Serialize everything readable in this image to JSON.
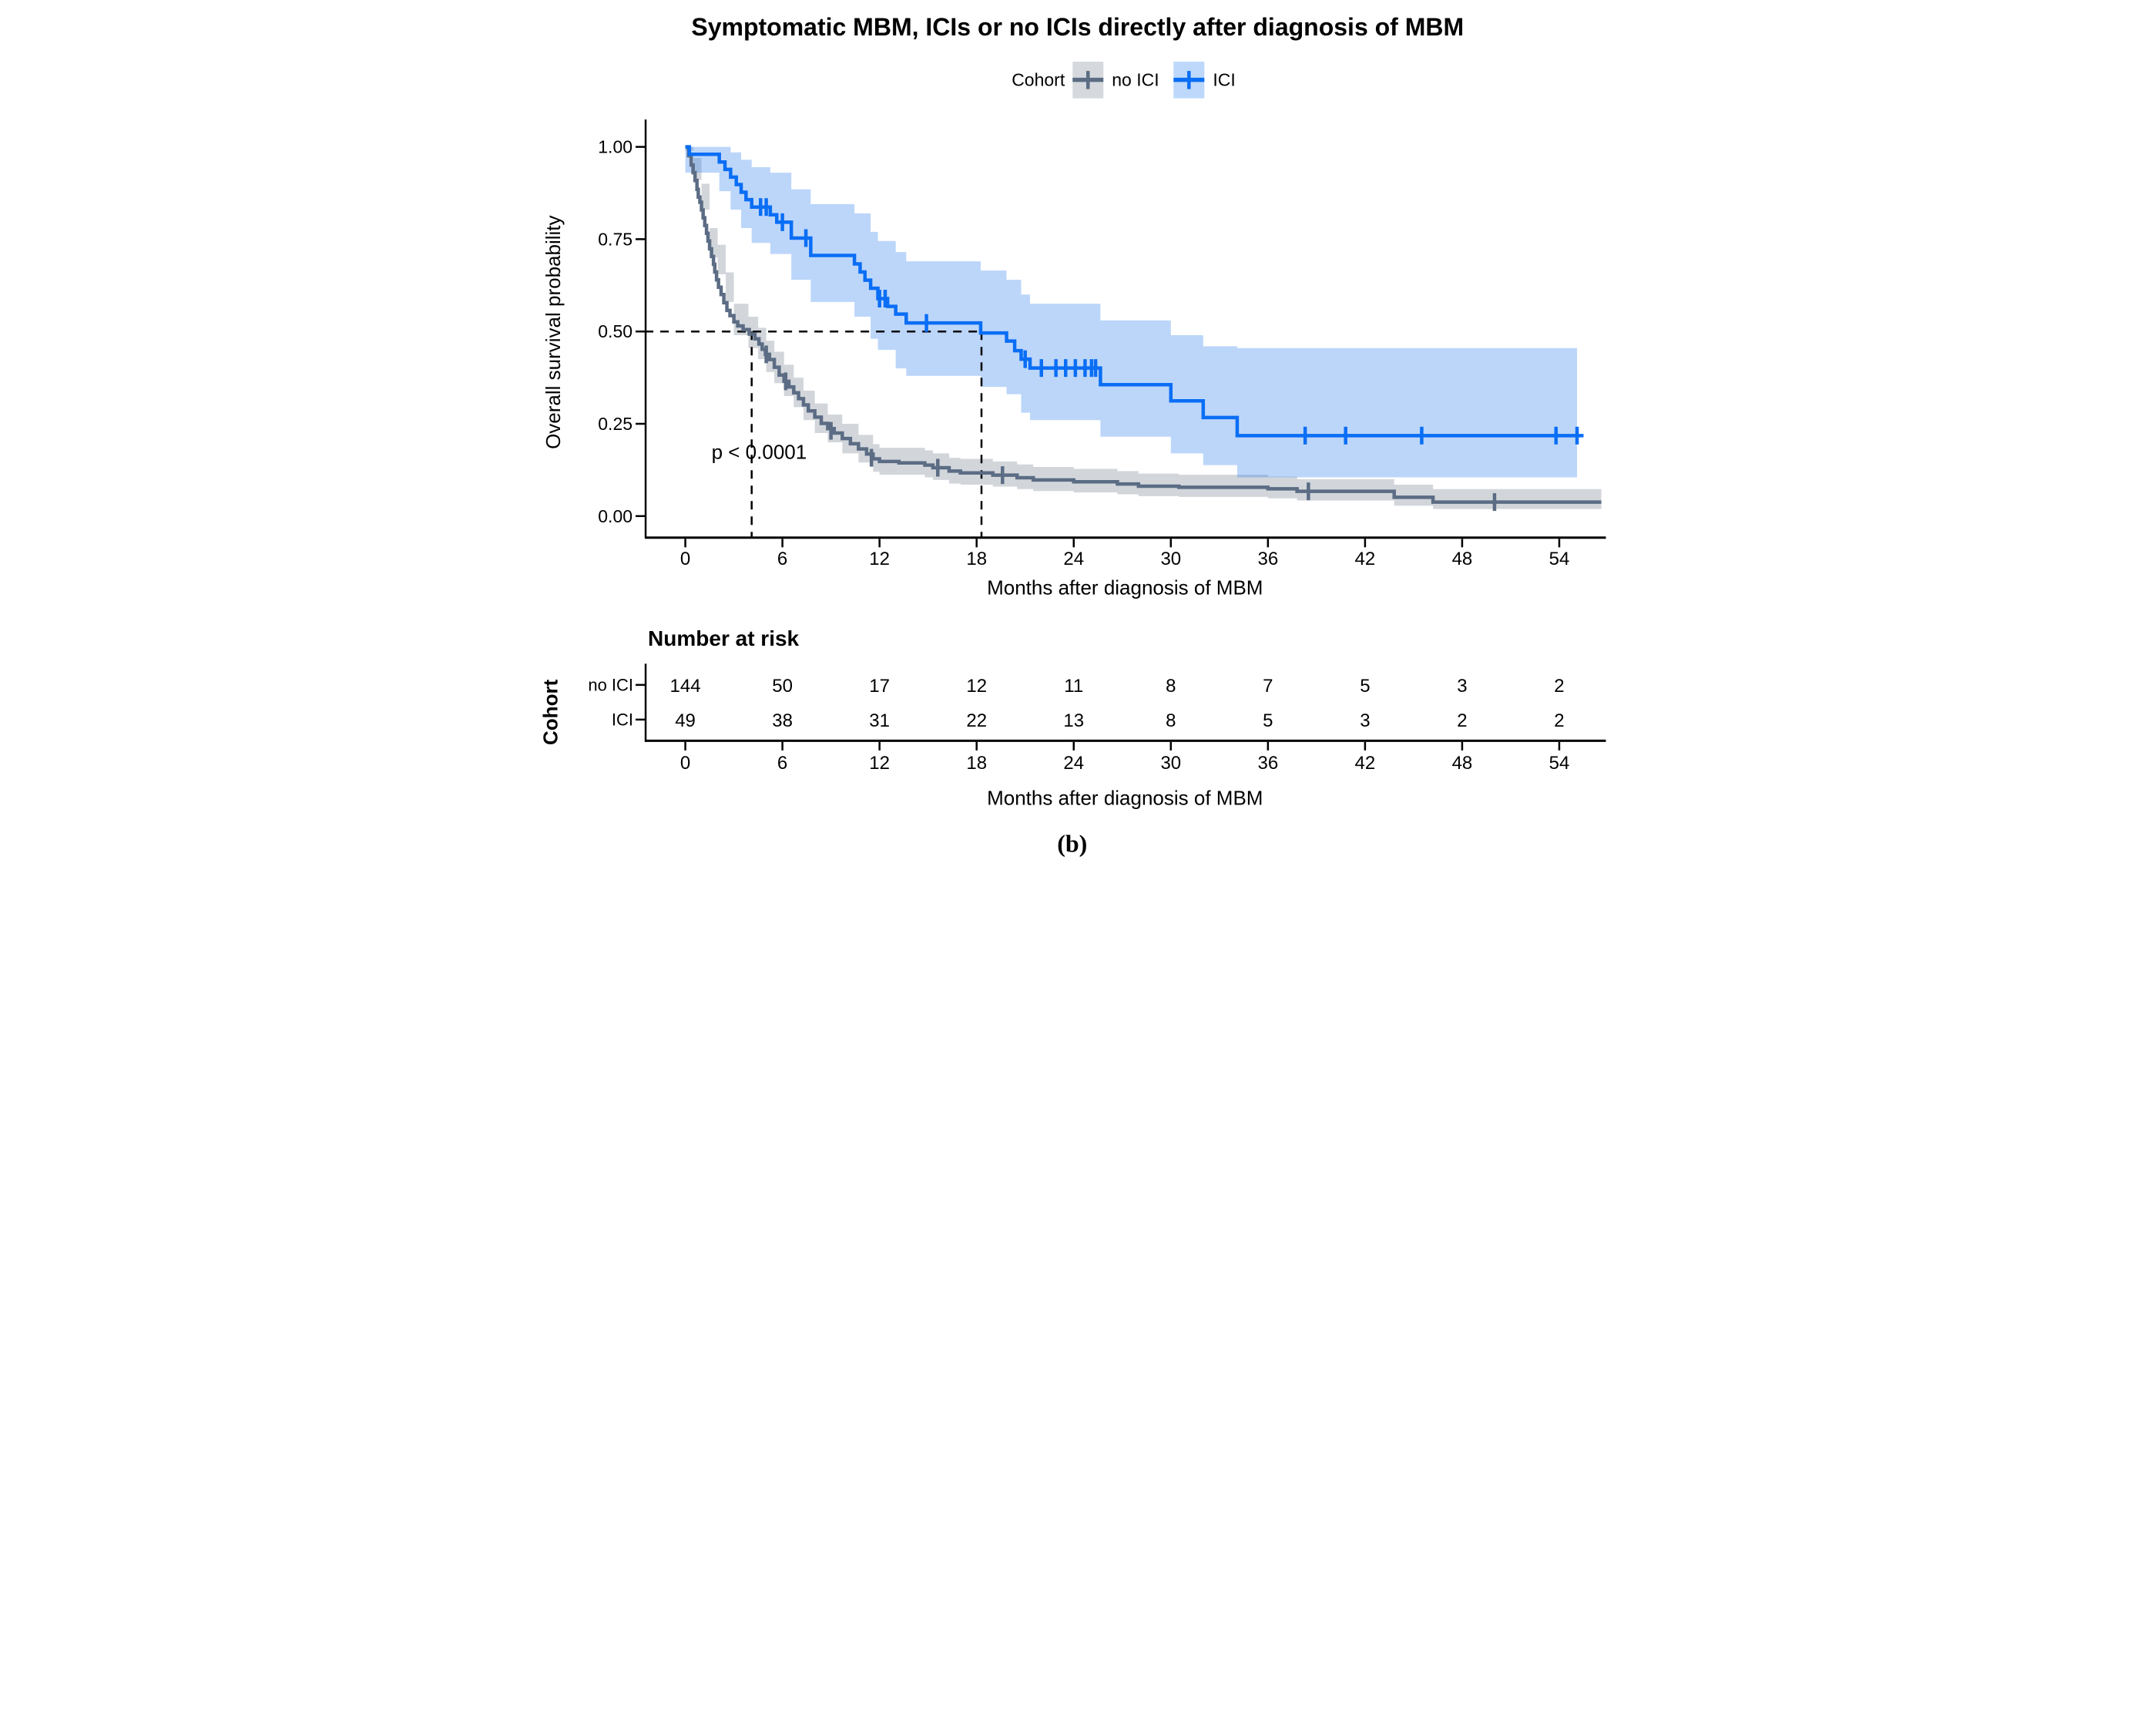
{
  "title": "Symptomatic MBM, ICIs or no ICIs directly after diagnosis of MBM",
  "legend": {
    "label": "Cohort",
    "items": [
      {
        "label": "no ICI",
        "color": "#5b6c84",
        "swatch_bg": "#d5d8dc"
      },
      {
        "label": "ICI",
        "color": "#0a6ef5",
        "swatch_bg": "#bdd8fb"
      }
    ]
  },
  "y_axis": {
    "label": "Overall survival probability",
    "ticks": [
      "0.00",
      "0.25",
      "0.50",
      "0.75",
      "1.00"
    ]
  },
  "x_axis": {
    "label": "Months after diagnosis of MBM",
    "ticks": [
      "0",
      "6",
      "12",
      "18",
      "24",
      "30",
      "36",
      "42",
      "48",
      "54"
    ]
  },
  "annotation": {
    "p_value": "p < 0.0001"
  },
  "colors": {
    "ici_line": "#0a6ef5",
    "ici_band": "#2f7ff0",
    "no_ici_line": "#5b6c84",
    "no_ici_band": "#d2d6db",
    "ici_label": "#3d85f6",
    "no_ici_label": "#8d99a9",
    "axis": "#000000"
  },
  "risk_table": {
    "heading": "Number at risk",
    "axis_label": "Cohort",
    "x_label": "Months after diagnosis of MBM",
    "x_ticks": [
      "0",
      "6",
      "12",
      "18",
      "24",
      "30",
      "36",
      "42",
      "48",
      "54"
    ],
    "rows": [
      {
        "label": "no ICI",
        "values": [
          144,
          50,
          17,
          12,
          11,
          8,
          7,
          5,
          3,
          2
        ]
      },
      {
        "label": "ICI",
        "values": [
          49,
          38,
          31,
          22,
          13,
          8,
          5,
          3,
          2,
          2
        ]
      }
    ]
  },
  "caption": "(b)",
  "chart_data": {
    "type": "km_step",
    "title": "Symptomatic MBM, ICIs or no ICIs directly after diagnosis of MBM",
    "xlabel": "Months after diagnosis of MBM",
    "ylabel": "Overall survival probability",
    "xlim": [
      0,
      56.6
    ],
    "ylim": [
      0,
      1
    ],
    "x_tick_values": [
      0,
      6,
      12,
      18,
      24,
      30,
      36,
      42,
      48,
      54
    ],
    "y_tick_values": [
      0,
      0.25,
      0.5,
      0.75,
      1.0
    ],
    "median_months": {
      "no_ici": 4.1,
      "ici": 18.3
    },
    "series": [
      {
        "name": "no ICI",
        "n": 144,
        "steps": [
          [
            0,
            1.0
          ],
          [
            0.2,
            0.976
          ],
          [
            0.36,
            0.951
          ],
          [
            0.48,
            0.93
          ],
          [
            0.6,
            0.909
          ],
          [
            0.72,
            0.885
          ],
          [
            0.8,
            0.864
          ],
          [
            0.9,
            0.85
          ],
          [
            1.0,
            0.829
          ],
          [
            1.1,
            0.808
          ],
          [
            1.2,
            0.787
          ],
          [
            1.31,
            0.766
          ],
          [
            1.4,
            0.745
          ],
          [
            1.5,
            0.724
          ],
          [
            1.62,
            0.703
          ],
          [
            1.74,
            0.682
          ],
          [
            1.82,
            0.661
          ],
          [
            1.93,
            0.64
          ],
          [
            2.05,
            0.62
          ],
          [
            2.21,
            0.6
          ],
          [
            2.38,
            0.578
          ],
          [
            2.57,
            0.557
          ],
          [
            2.76,
            0.543
          ],
          [
            3.0,
            0.526
          ],
          [
            3.24,
            0.515
          ],
          [
            3.57,
            0.505
          ],
          [
            3.95,
            0.493
          ],
          [
            4.3,
            0.48
          ],
          [
            4.55,
            0.466
          ],
          [
            4.75,
            0.452
          ],
          [
            4.95,
            0.438
          ],
          [
            5.2,
            0.424
          ],
          [
            5.5,
            0.403
          ],
          [
            5.8,
            0.382
          ],
          [
            6.1,
            0.365
          ],
          [
            6.4,
            0.35
          ],
          [
            6.7,
            0.334
          ],
          [
            7.0,
            0.318
          ],
          [
            7.3,
            0.301
          ],
          [
            7.6,
            0.285
          ],
          [
            8.0,
            0.268
          ],
          [
            8.4,
            0.251
          ],
          [
            8.8,
            0.237
          ],
          [
            9.2,
            0.225
          ],
          [
            9.7,
            0.21
          ],
          [
            10.2,
            0.196
          ],
          [
            10.7,
            0.182
          ],
          [
            11.2,
            0.168
          ],
          [
            11.6,
            0.155
          ],
          [
            12.0,
            0.148
          ],
          [
            13.2,
            0.144
          ],
          [
            14.8,
            0.138
          ],
          [
            15.3,
            0.131
          ],
          [
            16.3,
            0.122
          ],
          [
            17.0,
            0.117
          ],
          [
            19.0,
            0.111
          ],
          [
            20.5,
            0.104
          ],
          [
            21.5,
            0.098
          ],
          [
            24.0,
            0.093
          ],
          [
            26.7,
            0.087
          ],
          [
            28.0,
            0.081
          ],
          [
            30.5,
            0.078
          ],
          [
            36.0,
            0.074
          ],
          [
            37.8,
            0.067
          ],
          [
            43.8,
            0.051
          ],
          [
            46.2,
            0.038
          ],
          [
            56.6,
            0.038
          ]
        ],
        "censors": [
          [
            5.0,
            0.438
          ],
          [
            6.2,
            0.365
          ],
          [
            9.0,
            0.231
          ],
          [
            11.5,
            0.158
          ],
          [
            15.6,
            0.131
          ],
          [
            19.6,
            0.111
          ],
          [
            38.5,
            0.067
          ],
          [
            50.0,
            0.038
          ]
        ],
        "band": [
          [
            0,
            0.99,
            1.0
          ],
          [
            0.5,
            0.91,
            0.97
          ],
          [
            1.0,
            0.83,
            0.9
          ],
          [
            1.5,
            0.7,
            0.78
          ],
          [
            2.0,
            0.655,
            0.735
          ],
          [
            2.5,
            0.58,
            0.66
          ],
          [
            3.0,
            0.49,
            0.575
          ],
          [
            3.9,
            0.455,
            0.54
          ],
          [
            4.5,
            0.425,
            0.51
          ],
          [
            5.0,
            0.39,
            0.475
          ],
          [
            5.5,
            0.36,
            0.445
          ],
          [
            6.1,
            0.325,
            0.41
          ],
          [
            6.7,
            0.295,
            0.375
          ],
          [
            7.3,
            0.26,
            0.34
          ],
          [
            8.0,
            0.225,
            0.305
          ],
          [
            8.8,
            0.2,
            0.275
          ],
          [
            9.7,
            0.17,
            0.25
          ],
          [
            10.7,
            0.145,
            0.22
          ],
          [
            11.6,
            0.12,
            0.195
          ],
          [
            12.0,
            0.112,
            0.185
          ],
          [
            14.8,
            0.105,
            0.178
          ],
          [
            15.3,
            0.098,
            0.17
          ],
          [
            16.3,
            0.088,
            0.158
          ],
          [
            17.0,
            0.085,
            0.155
          ],
          [
            19.0,
            0.08,
            0.148
          ],
          [
            20.5,
            0.073,
            0.14
          ],
          [
            21.5,
            0.068,
            0.133
          ],
          [
            24.0,
            0.064,
            0.128
          ],
          [
            26.7,
            0.059,
            0.122
          ],
          [
            28.0,
            0.054,
            0.115
          ],
          [
            30.5,
            0.052,
            0.112
          ],
          [
            36.0,
            0.048,
            0.107
          ],
          [
            37.8,
            0.042,
            0.1
          ],
          [
            43.8,
            0.028,
            0.085
          ],
          [
            46.2,
            0.019,
            0.073
          ],
          [
            56.6,
            0.019,
            0.073
          ]
        ]
      },
      {
        "name": "ICI",
        "n": 49,
        "steps": [
          [
            0,
            1.0
          ],
          [
            0.25,
            0.98
          ],
          [
            2.1,
            0.959
          ],
          [
            2.45,
            0.939
          ],
          [
            2.8,
            0.918
          ],
          [
            3.15,
            0.898
          ],
          [
            3.45,
            0.877
          ],
          [
            3.75,
            0.857
          ],
          [
            4.1,
            0.837
          ],
          [
            5.25,
            0.816
          ],
          [
            5.65,
            0.796
          ],
          [
            6.55,
            0.753
          ],
          [
            7.75,
            0.706
          ],
          [
            10.45,
            0.683
          ],
          [
            10.8,
            0.661
          ],
          [
            11.1,
            0.639
          ],
          [
            11.45,
            0.617
          ],
          [
            11.9,
            0.589
          ],
          [
            12.5,
            0.568
          ],
          [
            13.0,
            0.547
          ],
          [
            13.65,
            0.523
          ],
          [
            18.25,
            0.496
          ],
          [
            19.85,
            0.474
          ],
          [
            20.35,
            0.448
          ],
          [
            20.75,
            0.425
          ],
          [
            21.3,
            0.401
          ],
          [
            25.65,
            0.356
          ],
          [
            30.0,
            0.312
          ],
          [
            32.0,
            0.267
          ],
          [
            34.1,
            0.218
          ],
          [
            55.5,
            0.218
          ]
        ],
        "censors": [
          [
            4.65,
            0.837
          ],
          [
            5.0,
            0.837
          ],
          [
            6.0,
            0.796
          ],
          [
            7.45,
            0.753
          ],
          [
            12.0,
            0.589
          ],
          [
            12.35,
            0.589
          ],
          [
            14.9,
            0.523
          ],
          [
            21.0,
            0.425
          ],
          [
            22.0,
            0.401
          ],
          [
            22.9,
            0.401
          ],
          [
            23.5,
            0.401
          ],
          [
            24.1,
            0.401
          ],
          [
            24.7,
            0.401
          ],
          [
            25.1,
            0.401
          ],
          [
            25.35,
            0.401
          ],
          [
            38.3,
            0.218
          ],
          [
            40.8,
            0.218
          ],
          [
            45.5,
            0.218
          ],
          [
            53.8,
            0.218
          ],
          [
            55.1,
            0.218
          ]
        ],
        "band": [
          [
            0,
            0.93,
            1.0
          ],
          [
            2.1,
            0.88,
            1.0
          ],
          [
            2.8,
            0.83,
            0.985
          ],
          [
            3.45,
            0.78,
            0.965
          ],
          [
            4.1,
            0.74,
            0.945
          ],
          [
            5.25,
            0.71,
            0.93
          ],
          [
            6.55,
            0.64,
            0.885
          ],
          [
            7.75,
            0.58,
            0.845
          ],
          [
            10.45,
            0.54,
            0.82
          ],
          [
            11.45,
            0.48,
            0.77
          ],
          [
            11.9,
            0.45,
            0.745
          ],
          [
            13.0,
            0.4,
            0.715
          ],
          [
            13.65,
            0.38,
            0.69
          ],
          [
            18.25,
            0.35,
            0.665
          ],
          [
            19.85,
            0.33,
            0.64
          ],
          [
            20.75,
            0.28,
            0.6
          ],
          [
            21.3,
            0.26,
            0.575
          ],
          [
            25.65,
            0.215,
            0.53
          ],
          [
            30.0,
            0.17,
            0.49
          ],
          [
            32.0,
            0.138,
            0.46
          ],
          [
            34.1,
            0.105,
            0.455
          ],
          [
            55.1,
            0.105,
            0.455
          ]
        ]
      }
    ]
  }
}
